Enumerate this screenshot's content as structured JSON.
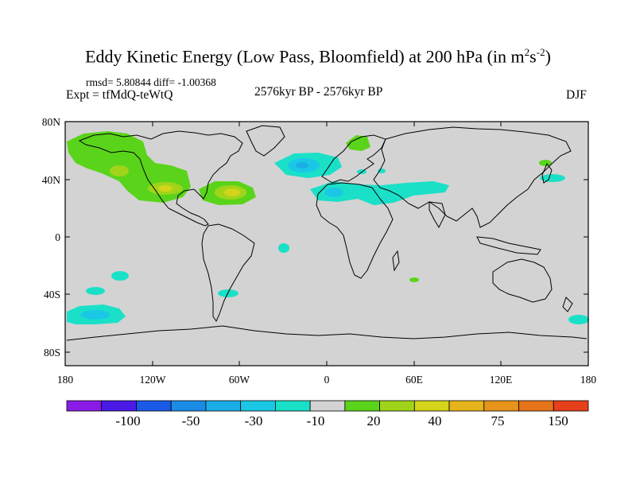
{
  "header": {
    "title": "Eddy Kinetic Energy (Low Pass, Bloomfield) at 200 hPa (in m",
    "title_unit_sup1": "2",
    "title_unit_s": "s",
    "title_unit_sup2": "-2",
    "title_close": ")",
    "rmsd_line": "rmsd= 5.80844 diff= -1.00368",
    "experiment": "Expt = tfMdQ-teWtQ",
    "period": "2576kyr BP - 2576kyr BP",
    "season": "DJF"
  },
  "map": {
    "ocean_color": "#d3d3d3",
    "lat_labels": [
      "80N",
      "40N",
      "0",
      "40S",
      "80S"
    ],
    "lon_labels": [
      "180",
      "120W",
      "60W",
      "0",
      "60E",
      "120E",
      "180"
    ]
  },
  "colorbar": {
    "colors": [
      "#8a1ae6",
      "#4a1ae6",
      "#1a5ae6",
      "#1a8ce6",
      "#1aaee6",
      "#1ac8e6",
      "#1ae0c8",
      "#d3d3d3",
      "#5ad41a",
      "#a0d41a",
      "#d4d41a",
      "#e6b41a",
      "#e6941a",
      "#e6741a",
      "#e6401a"
    ],
    "labels": [
      "-100",
      "-50",
      "-30",
      "-10",
      "20",
      "40",
      "75",
      "150"
    ]
  }
}
